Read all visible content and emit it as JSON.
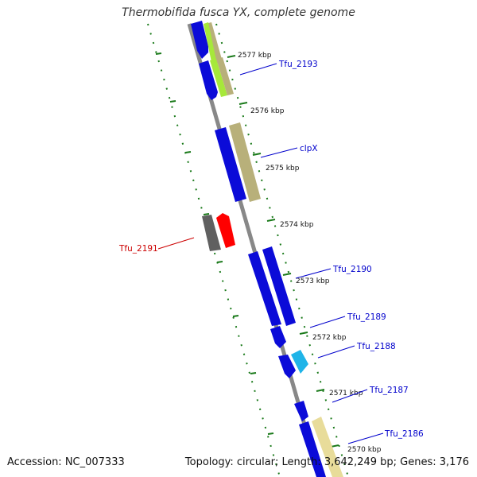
{
  "title": "Thermobifida fusca YX, complete genome",
  "footer": {
    "accession": "Accession: NC_007333",
    "stats": "Topology: circular; Length: 3,642,249 bp; Genes: 3,176"
  },
  "colors": {
    "backbone": "#888888",
    "tick": "#1a7a1a",
    "label_blue": "#0000cc",
    "label_red": "#cc0000",
    "cds_blue": "#0b0bd8",
    "khaki": "#b8b07a",
    "lime": "#a6e83a",
    "cyan": "#1fb4e8",
    "red": "#ff0000",
    "gray": "#606060",
    "pale": "#e8dc9a"
  },
  "ticks": [
    "2577 kbp",
    "2576 kbp",
    "2575 kbp",
    "2574 kbp",
    "2573 kbp",
    "2572 kbp",
    "2571 kbp",
    "2570 kbp"
  ],
  "genes": [
    {
      "label": "Tfu_2193",
      "color": "label_blue"
    },
    {
      "label": "clpX",
      "color": "label_blue"
    },
    {
      "label": "Tfu_2191",
      "color": "label_red"
    },
    {
      "label": "Tfu_2190",
      "color": "label_blue"
    },
    {
      "label": "Tfu_2189",
      "color": "label_blue"
    },
    {
      "label": "Tfu_2188",
      "color": "label_blue"
    },
    {
      "label": "Tfu_2187",
      "color": "label_blue"
    },
    {
      "label": "Tfu_2186",
      "color": "label_blue"
    }
  ]
}
